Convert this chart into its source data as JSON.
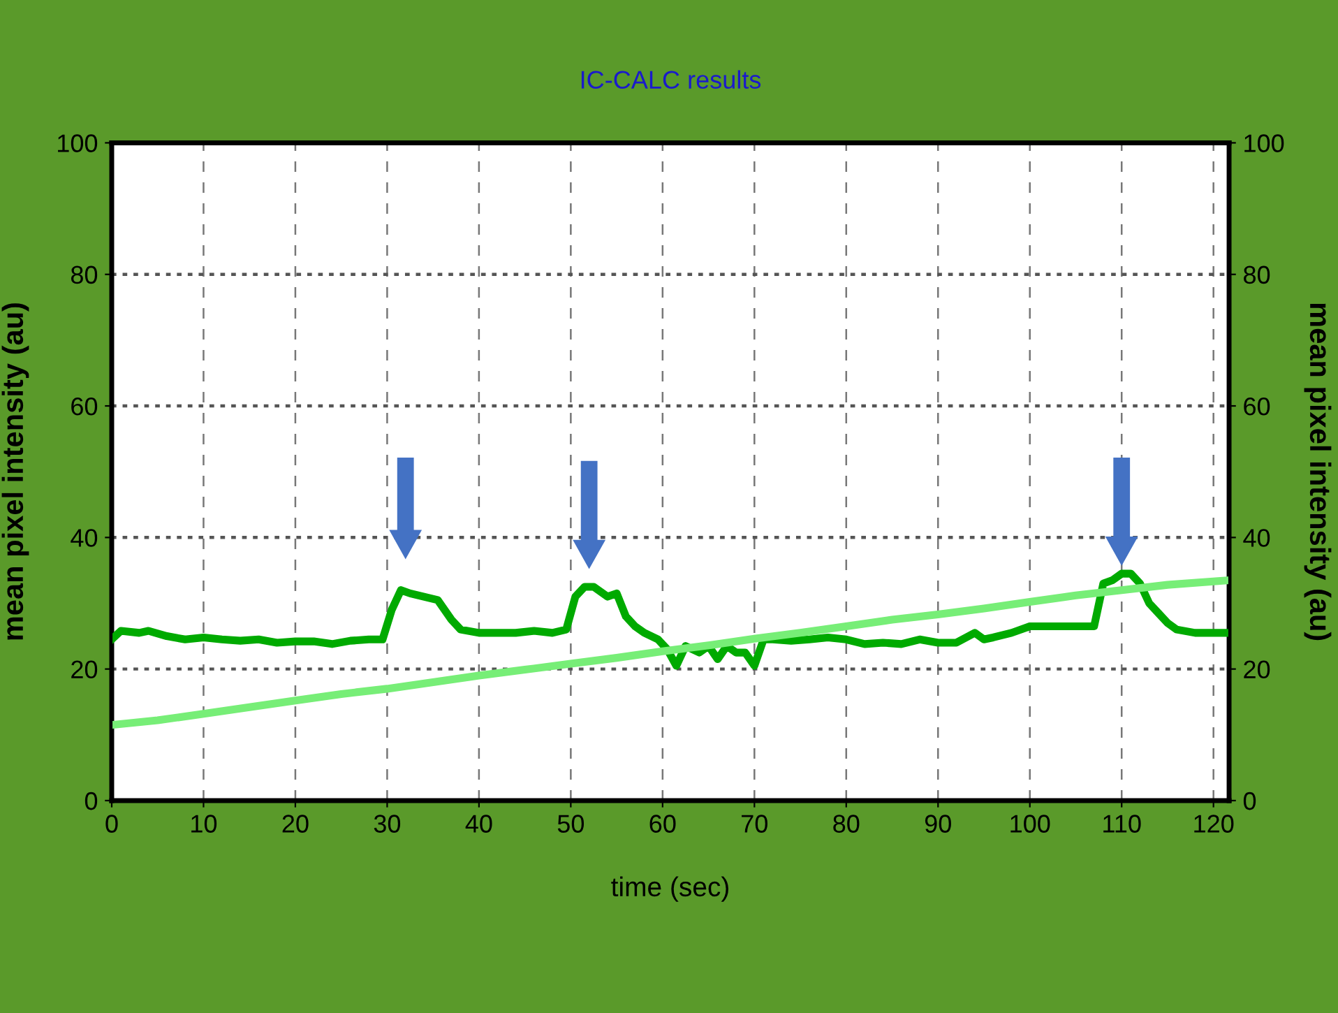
{
  "chart_data": {
    "type": "line",
    "title": "IC-CALC results",
    "xlabel": "time (sec)",
    "ylabel": "mean pixel intensity (au)",
    "y2label": "mean pixel intensity (au)",
    "xlim": [
      0,
      121.7
    ],
    "xticks": [
      0,
      10,
      20,
      30,
      40,
      50,
      60,
      70,
      80,
      90,
      100,
      110,
      120
    ],
    "ylim": [
      0,
      100
    ],
    "yticks": [
      0,
      20,
      40,
      60,
      80,
      100
    ],
    "y2lim": [
      0,
      100
    ],
    "y2ticks": [
      0,
      20,
      40,
      60,
      80,
      100
    ],
    "grid": true,
    "marker": "none",
    "line_style": "solid",
    "series": [
      {
        "color": "#00aa00",
        "x": [
          0,
          1,
          3,
          4,
          6,
          8,
          10,
          12,
          14,
          16,
          18,
          20,
          22,
          24,
          26,
          28,
          29.5,
          30.5,
          31.5,
          32.5,
          34,
          35.5,
          37,
          38,
          40,
          42,
          44,
          46,
          48,
          49.5,
          50.5,
          51.5,
          52.5,
          54,
          55,
          56,
          57,
          58,
          59.5,
          60.5,
          61.5,
          62.5,
          64,
          65,
          66,
          67,
          68,
          69,
          70,
          71,
          72,
          74,
          76,
          78,
          80,
          82,
          84,
          86,
          88,
          90,
          92,
          94,
          95,
          96,
          98,
          100,
          102,
          104,
          106,
          107,
          108,
          109,
          110,
          111,
          112,
          113,
          114,
          115,
          116,
          118,
          120,
          121.7
        ],
        "values": [
          24.5,
          25.8,
          25.5,
          25.8,
          25,
          24.5,
          24.8,
          24.5,
          24.3,
          24.5,
          24,
          24.2,
          24.2,
          23.8,
          24.3,
          24.5,
          24.5,
          29,
          32,
          31.5,
          31,
          30.5,
          27.5,
          26,
          25.5,
          25.5,
          25.5,
          25.8,
          25.5,
          26,
          31,
          32.5,
          32.5,
          31,
          31.5,
          28,
          26.5,
          25.5,
          24.5,
          23,
          20.5,
          23.5,
          22.5,
          23.5,
          21.5,
          23.5,
          22.5,
          22.5,
          20.5,
          24.5,
          24.5,
          24.3,
          24.5,
          24.8,
          24.5,
          23.8,
          24,
          23.8,
          24.5,
          24,
          24,
          25.5,
          24.5,
          24.8,
          25.5,
          26.5,
          26.5,
          26.5,
          26.5,
          26.5,
          33,
          33.5,
          34.5,
          34.5,
          33,
          30,
          28.5,
          27,
          26,
          25.5,
          25.5,
          25.5
        ]
      },
      {
        "color": "#77ee77",
        "x": [
          0,
          5,
          10,
          15,
          20,
          25,
          30,
          35,
          40,
          45,
          50,
          55,
          60,
          65,
          70,
          75,
          80,
          85,
          90,
          95,
          100,
          105,
          110,
          115,
          121.7
        ],
        "values": [
          11.5,
          12.2,
          13.2,
          14.2,
          15.2,
          16.2,
          17,
          18,
          19,
          19.9,
          20.8,
          21.7,
          22.7,
          23.6,
          24.6,
          25.5,
          26.5,
          27.5,
          28.3,
          29.2,
          30.2,
          31.2,
          32,
          32.8,
          33.5
        ]
      }
    ]
  }
}
